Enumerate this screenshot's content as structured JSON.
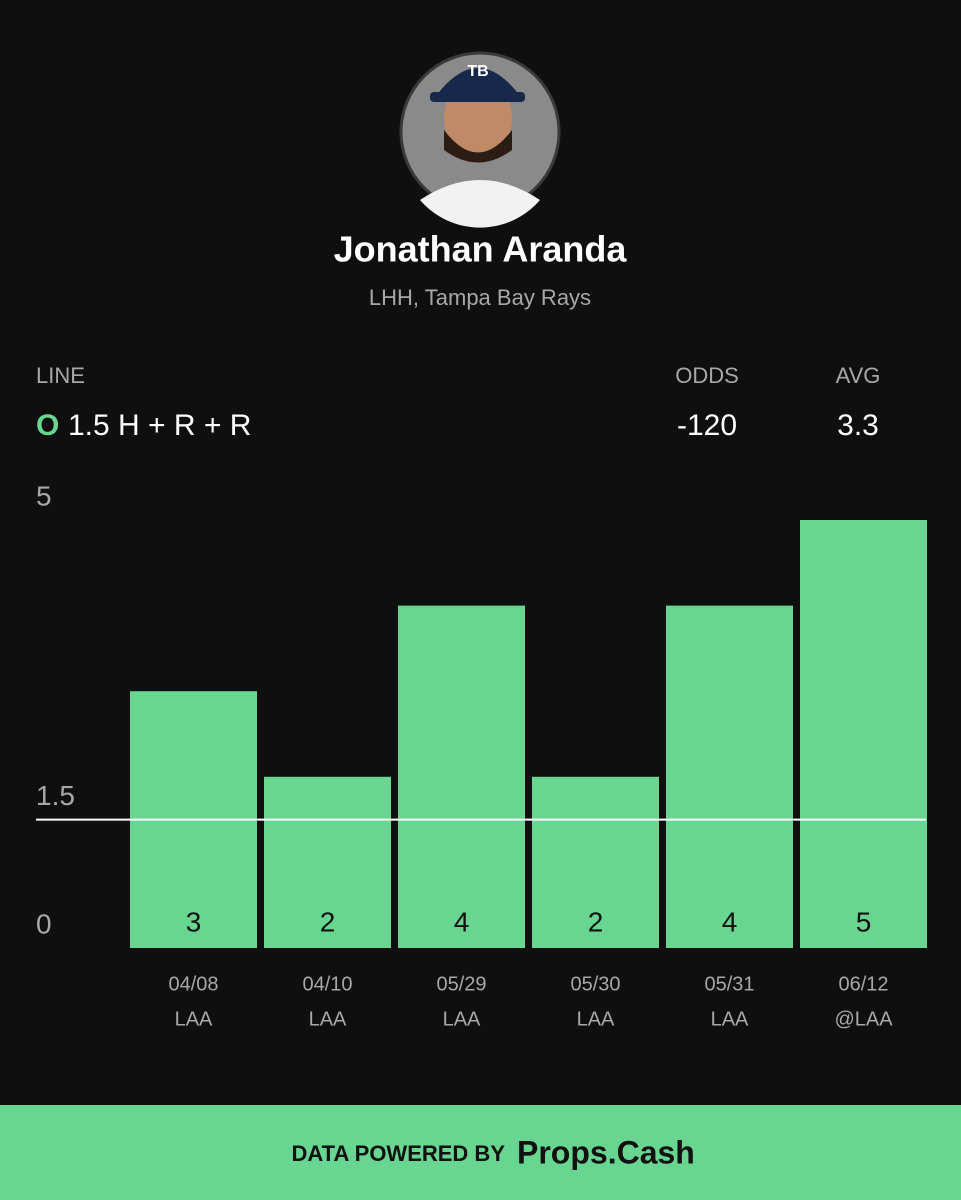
{
  "header": {
    "name": "Jonathan Aranda",
    "subtitle": "LHH, Tampa Bay Rays"
  },
  "line": {
    "label": "LINE",
    "side": "O",
    "value": "1.5 H + R + R"
  },
  "odds": {
    "label": "ODDS",
    "value": "-120"
  },
  "avg": {
    "label": "AVG",
    "value": "3.3"
  },
  "chart_data": {
    "type": "bar",
    "categories": [
      "04/08",
      "04/10",
      "05/29",
      "05/30",
      "05/31",
      "06/12"
    ],
    "opponents": [
      "LAA",
      "LAA",
      "LAA",
      "LAA",
      "LAA",
      "@LAA"
    ],
    "values": [
      3,
      2,
      4,
      2,
      4,
      5
    ],
    "color": "#68d690",
    "ylim": [
      0,
      5
    ],
    "yticks": [
      0,
      1.5,
      5
    ],
    "threshold": 1.5
  },
  "footer": {
    "prefix": "DATA POWERED BY",
    "brand": "Props.Cash"
  }
}
